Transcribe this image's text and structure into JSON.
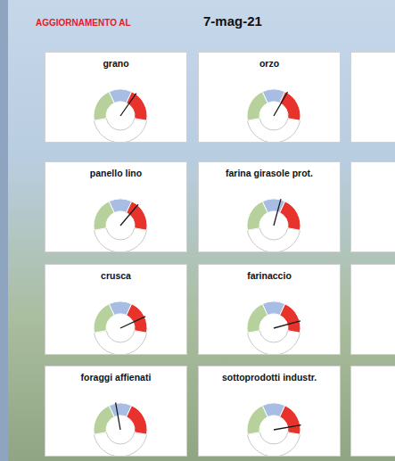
{
  "header": {
    "label": "AGGIORNAMENTO AL",
    "date": "7-mag-21"
  },
  "chart_data": [
    {
      "type": "gauge",
      "title": "grano",
      "value": 67.5,
      "range": [
        0,
        100
      ],
      "bands": {
        "values": [
          37.5,
          25,
          37.5
        ],
        "colors": [
          "#b7d19c",
          "#a8bde3",
          "#e8332c"
        ]
      }
    },
    {
      "type": "gauge",
      "title": "orzo",
      "value": 65,
      "range": [
        0,
        100
      ],
      "bands": {
        "values": [
          37.5,
          25,
          37.5
        ],
        "colors": [
          "#b7d19c",
          "#a8bde3",
          "#e8332c"
        ]
      }
    },
    {
      "type": "gauge",
      "title": "panello lino",
      "value": 70,
      "range": [
        0,
        100
      ],
      "bands": {
        "values": [
          37.5,
          25,
          37.5
        ],
        "colors": [
          "#b7d19c",
          "#a8bde3",
          "#e8332c"
        ]
      }
    },
    {
      "type": "gauge",
      "title": "farina girasole prot.",
      "value": 57.5,
      "range": [
        0,
        100
      ],
      "bands": {
        "values": [
          37.5,
          25,
          37.5
        ],
        "colors": [
          "#b7d19c",
          "#a8bde3",
          "#e8332c"
        ]
      }
    },
    {
      "type": "gauge",
      "title": "crusca",
      "value": 82.5,
      "range": [
        0,
        100
      ],
      "bands": {
        "values": [
          37.5,
          25,
          37.5
        ],
        "colors": [
          "#b7d19c",
          "#a8bde3",
          "#e8332c"
        ]
      }
    },
    {
      "type": "gauge",
      "title": "farinaccio",
      "value": 87.5,
      "range": [
        0,
        100
      ],
      "bands": {
        "values": [
          37.5,
          25,
          37.5
        ],
        "colors": [
          "#b7d19c",
          "#a8bde3",
          "#e8332c"
        ]
      }
    },
    {
      "type": "gauge",
      "title": "foraggi affienati",
      "value": 45,
      "range": [
        0,
        100
      ],
      "bands": {
        "values": [
          37.5,
          25,
          37.5
        ],
        "colors": [
          "#b7d19c",
          "#a8bde3",
          "#e8332c"
        ]
      }
    },
    {
      "type": "gauge",
      "title": "sottoprodotti industr.",
      "value": 90,
      "range": [
        0,
        100
      ],
      "bands": {
        "values": [
          37.5,
          25,
          37.5
        ],
        "colors": [
          "#b7d19c",
          "#a8bde3",
          "#e8332c"
        ]
      }
    }
  ]
}
